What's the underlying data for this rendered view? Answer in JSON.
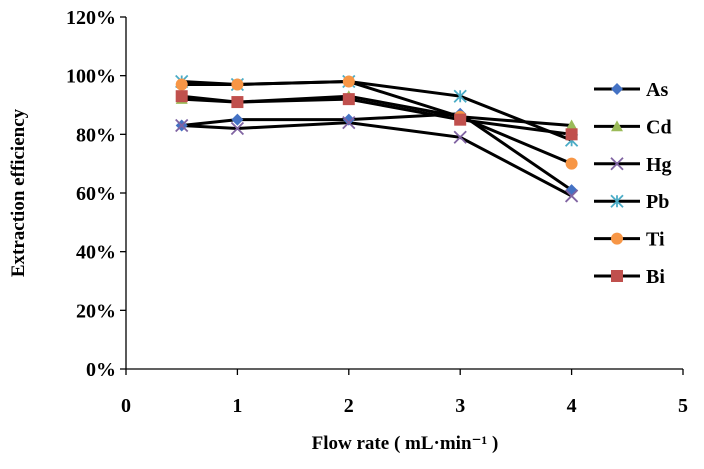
{
  "chart_data": {
    "type": "line",
    "title": "",
    "xlabel": "Flow rate ( mL·min⁻¹ )",
    "ylabel": "Extraction efficiency",
    "xlim": [
      0,
      5
    ],
    "ylim": [
      0,
      120
    ],
    "x_ticks": [
      "0",
      "1",
      "2",
      "3",
      "4",
      "5"
    ],
    "y_ticks": [
      "0%",
      "20%",
      "40%",
      "60%",
      "80%",
      "100%",
      "120%"
    ],
    "grid": false,
    "legend_position": "right",
    "series": [
      {
        "name": "As",
        "marker": "diamond",
        "color": "#4472C4",
        "x": [
          0.5,
          1,
          2,
          3,
          4
        ],
        "y": [
          83,
          85,
          85,
          87,
          61
        ]
      },
      {
        "name": "Cd",
        "marker": "triangle",
        "color": "#9BBB59",
        "x": [
          0.5,
          1,
          2,
          3,
          4
        ],
        "y": [
          92,
          91,
          93,
          86,
          83
        ]
      },
      {
        "name": "Hg",
        "marker": "x",
        "color": "#8064A2",
        "x": [
          0.5,
          1,
          2,
          3,
          4
        ],
        "y": [
          83,
          82,
          84,
          79,
          59
        ]
      },
      {
        "name": "Pb",
        "marker": "star",
        "color": "#4BACC6",
        "x": [
          0.5,
          1,
          2,
          3,
          4
        ],
        "y": [
          98,
          97,
          98,
          93,
          78
        ]
      },
      {
        "name": "Ti",
        "marker": "circle",
        "color": "#F79646",
        "x": [
          0.5,
          1,
          2,
          3,
          4
        ],
        "y": [
          97,
          97,
          98,
          86,
          70
        ]
      },
      {
        "name": "Bi",
        "marker": "square",
        "color": "#C0504D",
        "x": [
          0.5,
          1,
          2,
          3,
          4
        ],
        "y": [
          93,
          91,
          92,
          85,
          80
        ]
      }
    ]
  }
}
